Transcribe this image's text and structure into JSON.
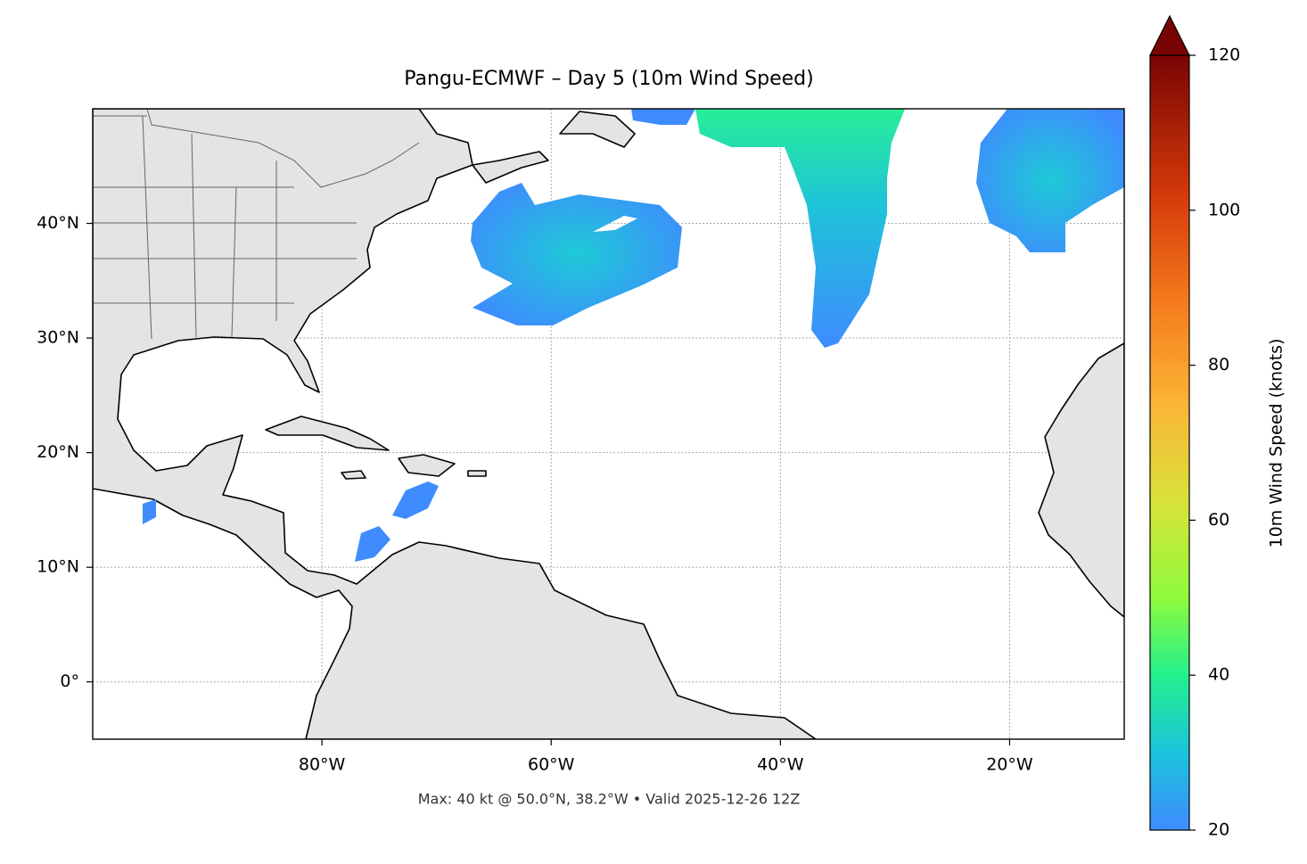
{
  "chart_data": {
    "type": "map",
    "title": "Pangu-ECMWF – Day 5 (10m Wind Speed)",
    "annotation": "Max: 40 kt @ 50.0°N, 38.2°W • Valid 2025-12-26 12Z",
    "xlim": [
      -100,
      -10
    ],
    "ylim": [
      -5,
      50
    ],
    "xticks": [
      {
        "value": -80,
        "label": "80°W"
      },
      {
        "value": -60,
        "label": "60°W"
      },
      {
        "value": -40,
        "label": "40°W"
      },
      {
        "value": -20,
        "label": "20°W"
      }
    ],
    "yticks": [
      {
        "value": 0,
        "label": "0°"
      },
      {
        "value": 10,
        "label": "10°N"
      },
      {
        "value": 20,
        "label": "20°N"
      },
      {
        "value": 30,
        "label": "30°N"
      },
      {
        "value": 40,
        "label": "40°N"
      }
    ],
    "grid": true,
    "colorbar": {
      "label": "10m Wind Speed (knots)",
      "lim": [
        20,
        120
      ],
      "ticks": [
        20,
        40,
        60,
        80,
        100,
        120
      ]
    }
  }
}
